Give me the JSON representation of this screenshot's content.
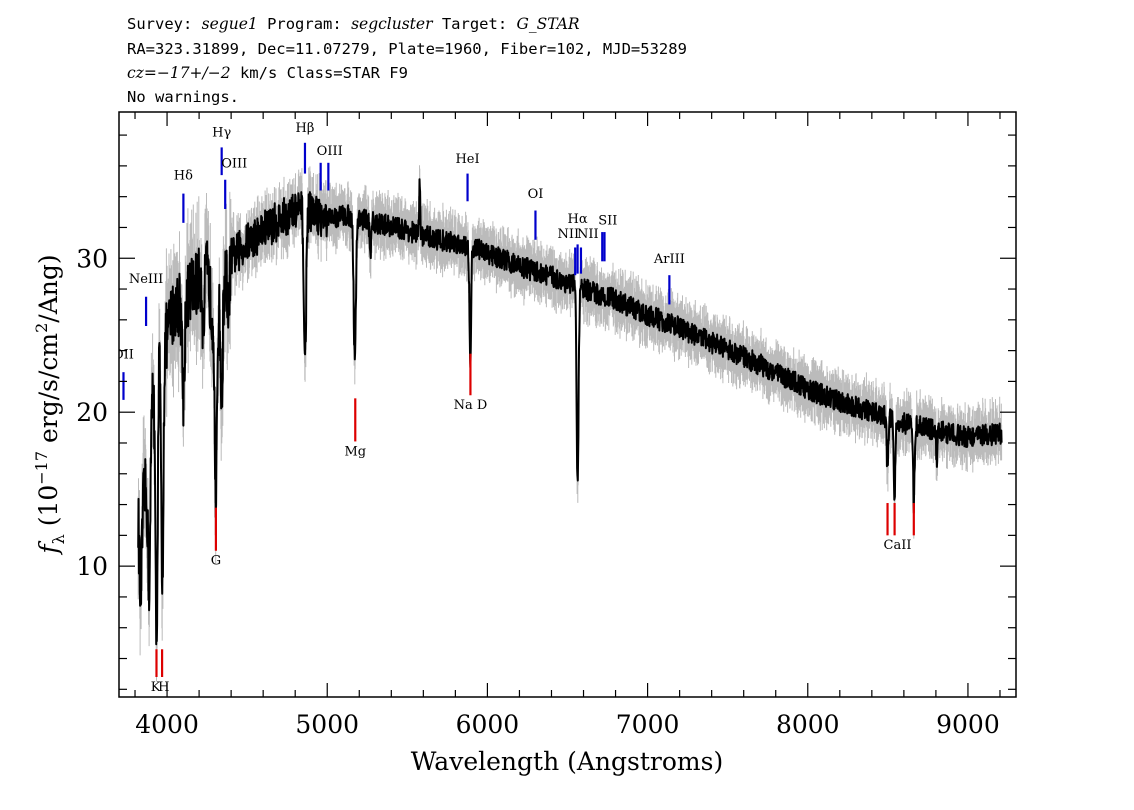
{
  "header": {
    "line1": {
      "survey_label": "Survey: ",
      "survey": "segue1",
      "program_label": " Program: ",
      "program": "segcluster",
      "target_label": " Target: ",
      "target": "G_STAR"
    },
    "line2": "RA=323.31899, Dec=11.07279, Plate=1960, Fiber=102, MJD=53289",
    "line3": {
      "cz_label": "cz",
      "cz_value": "=−17+/−2",
      "cz_unit": " km/s Class=STAR F9"
    },
    "line4": "No warnings."
  },
  "chart_data": {
    "type": "line",
    "xlabel": "Wavelength (Angstroms)",
    "ylabel": {
      "f": "f",
      "sub": "λ",
      "pre": " (10",
      "sup1": "−17",
      "mid": " erg/s/cm",
      "sup2": "2",
      "post": "/Ang)"
    },
    "xlim": [
      3700,
      9300
    ],
    "ylim": [
      1.5,
      39.5
    ],
    "x_ticks": [
      4000,
      5000,
      6000,
      7000,
      8000,
      9000
    ],
    "y_ticks": [
      10,
      20,
      30
    ],
    "grid": false,
    "colors": {
      "flux": "#000000",
      "error": "#bbbbbb",
      "emission": "#0000cc",
      "absorption": "#dd0000"
    },
    "continuum": [
      [
        3830,
        14
      ],
      [
        3870,
        15
      ],
      [
        3900,
        21
      ],
      [
        3950,
        24
      ],
      [
        4000,
        25
      ],
      [
        4050,
        27
      ],
      [
        4100,
        27
      ],
      [
        4150,
        28
      ],
      [
        4200,
        28.5
      ],
      [
        4250,
        29
      ],
      [
        4300,
        25
      ],
      [
        4350,
        28
      ],
      [
        4400,
        30
      ],
      [
        4450,
        30.5
      ],
      [
        4500,
        31
      ],
      [
        4600,
        31.8
      ],
      [
        4700,
        32.5
      ],
      [
        4800,
        33
      ],
      [
        4850,
        33.2
      ],
      [
        4900,
        33
      ],
      [
        5000,
        32.5
      ],
      [
        5100,
        32.8
      ],
      [
        5200,
        32.6
      ],
      [
        5300,
        32.3
      ],
      [
        5400,
        32.1
      ],
      [
        5500,
        31.8
      ],
      [
        5600,
        31.5
      ],
      [
        5700,
        31.2
      ],
      [
        5800,
        31
      ],
      [
        5900,
        30.8
      ],
      [
        6000,
        30.3
      ],
      [
        6200,
        29.5
      ],
      [
        6400,
        28.8
      ],
      [
        6600,
        28
      ],
      [
        6800,
        27.3
      ],
      [
        7000,
        26.3
      ],
      [
        7200,
        25.5
      ],
      [
        7400,
        24.5
      ],
      [
        7600,
        23.6
      ],
      [
        7800,
        22.6
      ],
      [
        8000,
        21.5
      ],
      [
        8200,
        20.7
      ],
      [
        8400,
        20
      ],
      [
        8600,
        19.3
      ],
      [
        8800,
        18.8
      ],
      [
        9000,
        18.4
      ],
      [
        9200,
        18.6
      ]
    ],
    "absorption_features": [
      {
        "x": 3835,
        "depth": 6,
        "width": 8
      },
      {
        "x": 3889,
        "depth": 10,
        "width": 8
      },
      {
        "x": 3934,
        "depth": 18,
        "width": 7
      },
      {
        "x": 3970,
        "depth": 16,
        "width": 7
      },
      {
        "x": 4102,
        "depth": 6,
        "width": 7
      },
      {
        "x": 4227,
        "depth": 4,
        "width": 5
      },
      {
        "x": 4305,
        "depth": 12,
        "width": 6
      },
      {
        "x": 4341,
        "depth": 7,
        "width": 6
      },
      {
        "x": 4383,
        "depth": 4,
        "width": 5
      },
      {
        "x": 4861,
        "depth": 10,
        "width": 7
      },
      {
        "x": 5172,
        "depth": 9,
        "width": 7
      },
      {
        "x": 5270,
        "depth": 2.5,
        "width": 5
      },
      {
        "x": 5893,
        "depth": 8,
        "width": 5
      },
      {
        "x": 6563,
        "depth": 13,
        "width": 6
      },
      {
        "x": 8498,
        "depth": 3.5,
        "width": 5
      },
      {
        "x": 8542,
        "depth": 5,
        "width": 5
      },
      {
        "x": 8662,
        "depth": 5,
        "width": 5
      },
      {
        "x": 8806,
        "depth": 2,
        "width": 4
      }
    ],
    "spikes": [
      {
        "x": 5577,
        "height": 3.5
      }
    ],
    "emission_lines": [
      {
        "label": "OII",
        "x": 3728,
        "y_bottom": 20.8,
        "y_top": 22.6,
        "label_y": 23.5,
        "anchor": "middle"
      },
      {
        "label": "NeIII",
        "x": 3869,
        "y_bottom": 25.6,
        "y_top": 27.5,
        "label_y": 28.4,
        "anchor": "middle"
      },
      {
        "label": "Hδ",
        "x": 4102,
        "y_bottom": 32.3,
        "y_top": 34.2,
        "label_y": 35.1,
        "anchor": "middle"
      },
      {
        "label": "Hγ",
        "x": 4341,
        "y_bottom": 35.4,
        "y_top": 37.2,
        "label_y": 37.9,
        "anchor": "middle"
      },
      {
        "label": "OIII",
        "x": 4363,
        "y_bottom": 33.2,
        "y_top": 35.1,
        "label_y": 35.9,
        "anchor": "start"
      },
      {
        "label": "Hβ",
        "x": 4861,
        "y_bottom": 35.5,
        "y_top": 37.5,
        "label_y": 38.2,
        "anchor": "middle"
      },
      {
        "label": "OIII",
        "x": 4959,
        "y_bottom": 34.4,
        "y_top": 36.2,
        "label_y": 36.7,
        "anchor": "start"
      },
      {
        "label": "",
        "x": 5007,
        "y_bottom": 34.4,
        "y_top": 36.2,
        "label_y": 36.7,
        "anchor": "start"
      },
      {
        "label": "HeI",
        "x": 5876,
        "y_bottom": 33.7,
        "y_top": 35.5,
        "label_y": 36.2,
        "anchor": "middle"
      },
      {
        "label": "OI",
        "x": 6300,
        "y_bottom": 31.2,
        "y_top": 33.1,
        "label_y": 33.9,
        "anchor": "middle"
      },
      {
        "label": "NII",
        "x": 6548,
        "y_bottom": 28.9,
        "y_top": 30.7,
        "label_y": 31.3,
        "anchor": "end"
      },
      {
        "label": "Hα",
        "x": 6563,
        "y_bottom": 29.0,
        "y_top": 30.9,
        "label_y": 32.3,
        "anchor": "middle"
      },
      {
        "label": "NII",
        "x": 6584,
        "y_bottom": 29.0,
        "y_top": 30.7,
        "label_y": 31.3,
        "anchor": "start"
      },
      {
        "label": "SII",
        "x": 6717,
        "y_bottom": 29.8,
        "y_top": 31.7,
        "label_y": 32.2,
        "anchor": "start"
      },
      {
        "label": "",
        "x": 6731,
        "y_bottom": 29.8,
        "y_top": 31.7,
        "label_y": 32.2,
        "anchor": "start"
      },
      {
        "label": "ArIII",
        "x": 7136,
        "y_bottom": 27.0,
        "y_top": 28.9,
        "label_y": 29.7,
        "anchor": "middle"
      }
    ],
    "absorption_lines": [
      {
        "label": "K",
        "x": 3934,
        "y_bottom": 2.8,
        "y_top": 4.6,
        "label_y": 1.9,
        "anchor": "end"
      },
      {
        "label": "H",
        "x": 3969,
        "y_bottom": 2.8,
        "y_top": 4.6,
        "label_y": 1.9,
        "anchor": "start"
      },
      {
        "label": "G",
        "x": 4305,
        "y_bottom": 11.0,
        "y_top": 13.8,
        "label_y": 10.1,
        "anchor": "middle"
      },
      {
        "label": "Mg",
        "x": 5175,
        "y_bottom": 18.1,
        "y_top": 20.9,
        "label_y": 17.2,
        "anchor": "middle"
      },
      {
        "label": "Na D",
        "x": 5894,
        "y_bottom": 21.1,
        "y_top": 23.8,
        "label_y": 20.2,
        "anchor": "middle"
      },
      {
        "label": "CaII",
        "x": 8498,
        "y_bottom": 12.0,
        "y_top": 14.1,
        "label_y": 11.1,
        "anchor": "start"
      },
      {
        "label": "",
        "x": 8542,
        "y_bottom": 12.0,
        "y_top": 14.1,
        "label_y": 11.1,
        "anchor": "start"
      },
      {
        "label": "",
        "x": 8662,
        "y_bottom": 12.0,
        "y_top": 14.1,
        "label_y": 11.1,
        "anchor": "start"
      }
    ]
  }
}
